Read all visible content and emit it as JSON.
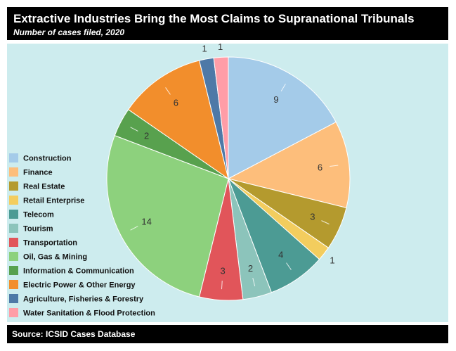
{
  "header": {
    "title": "Extractive Industries Bring the Most Claims to Supranational Tribunals",
    "subtitle": "Number of cases filed, 2020"
  },
  "footer": {
    "source": "Source: ICSID Cases Database"
  },
  "colors": {
    "background": "#cdecee",
    "bars": "#000000"
  },
  "chart_data": {
    "type": "pie",
    "title": "Extractive Industries Bring the Most Claims to Supranational Tribunals",
    "subtitle": "Number of cases filed, 2020",
    "legend_position": "left",
    "direction": "clockwise",
    "start": "top",
    "slices": [
      {
        "label": "Construction",
        "value": 9,
        "color": "#a4cbe9"
      },
      {
        "label": "Finance",
        "value": 6,
        "color": "#fdbe7b"
      },
      {
        "label": "Real Estate",
        "value": 3,
        "color": "#b49a2e"
      },
      {
        "label": "Retail Enterprise",
        "value": 1,
        "color": "#f3cd5e"
      },
      {
        "label": "Telecom",
        "value": 4,
        "color": "#4c9b94"
      },
      {
        "label": "Tourism",
        "value": 2,
        "color": "#8cc4bb"
      },
      {
        "label": "Transportation",
        "value": 3,
        "color": "#e1555a"
      },
      {
        "label": "Oil, Gas & Mining",
        "value": 14,
        "color": "#8dd17d"
      },
      {
        "label": "Information & Communication",
        "value": 2,
        "color": "#58a14e"
      },
      {
        "label": "Electric Power & Other Energy",
        "value": 6,
        "color": "#f28e2c"
      },
      {
        "label": "Agriculture, Fisheries & Forestry",
        "value": 1,
        "color": "#4e79a7"
      },
      {
        "label": "Water Sanitation & Flood Protection",
        "value": 1,
        "color": "#ff9da7"
      }
    ]
  }
}
